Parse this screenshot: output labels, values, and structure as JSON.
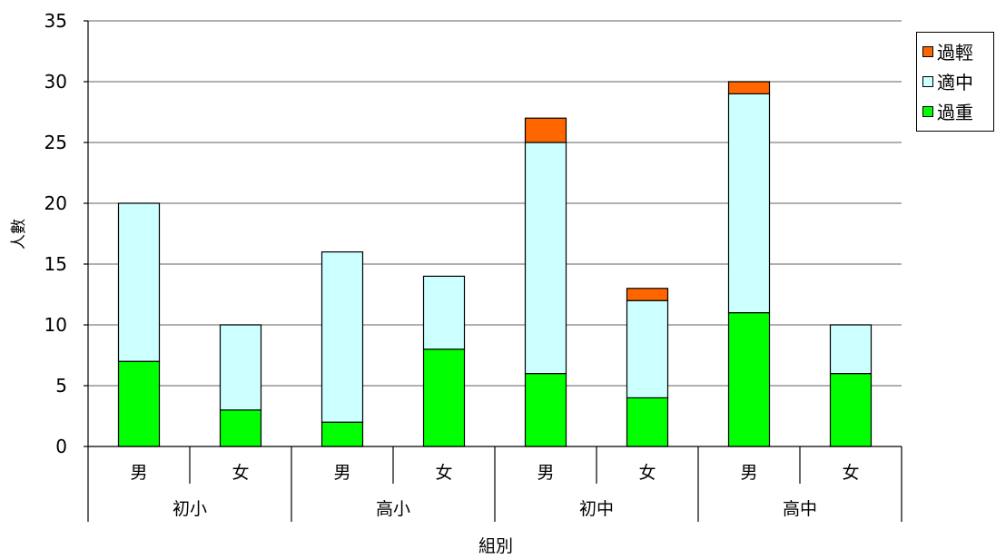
{
  "chart_data": {
    "type": "bar",
    "stacked": true,
    "categories": [
      {
        "group": "初小",
        "sub": "男"
      },
      {
        "group": "初小",
        "sub": "女"
      },
      {
        "group": "高小",
        "sub": "男"
      },
      {
        "group": "高小",
        "sub": "女"
      },
      {
        "group": "初中",
        "sub": "男"
      },
      {
        "group": "初中",
        "sub": "女"
      },
      {
        "group": "高中",
        "sub": "男"
      },
      {
        "group": "高中",
        "sub": "女"
      }
    ],
    "groups": [
      "初小",
      "高小",
      "初中",
      "高中"
    ],
    "series": [
      {
        "name": "過重",
        "color": "#00ff00",
        "values": [
          7,
          3,
          2,
          8,
          6,
          4,
          11,
          6
        ]
      },
      {
        "name": "適中",
        "color": "#ccffff",
        "values": [
          13,
          7,
          14,
          6,
          19,
          8,
          18,
          4
        ]
      },
      {
        "name": "過輕",
        "color": "#ff6600",
        "values": [
          0,
          0,
          0,
          0,
          2,
          1,
          1,
          0
        ]
      }
    ],
    "ylabel": "人數",
    "xlabel": "組別",
    "ylim": [
      0,
      35
    ],
    "yticks": [
      0,
      5,
      10,
      15,
      20,
      25,
      30,
      35
    ],
    "grid": true,
    "legend_position": "top-right"
  }
}
